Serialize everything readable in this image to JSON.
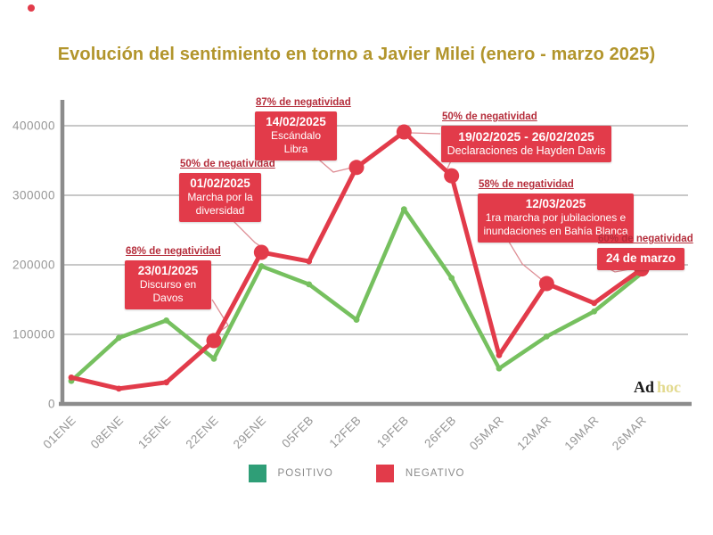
{
  "title": "Evolución del sentimiento en torno a Javier Milei (enero - marzo 2025)",
  "brand": {
    "part1": "Ad",
    "part2": "hoc"
  },
  "legend": [
    {
      "label": "POSITIVO",
      "color": "#2f9e77"
    },
    {
      "label": "NEGATIVO",
      "color": "#e23b4a"
    }
  ],
  "colors": {
    "title": "#b2952c",
    "positive_line": "#76c05f",
    "negative_line": "#e23b4a",
    "annotation_box": "#e23b4a",
    "pct_label": "#b52d3b",
    "connector": "#de8e95",
    "axis": "#8c8c8c",
    "gridline": "#a6a6a6",
    "tick_label": "#979797",
    "brand_hoc": "#e3da8f"
  },
  "chart_data": {
    "type": "line",
    "title": "Evolución del sentimiento en torno a Javier Milei (enero - marzo 2025)",
    "categories": [
      "01ENE",
      "08ENE",
      "15ENE",
      "22ENE",
      "29ENE",
      "05FEB",
      "12FEB",
      "19FEB",
      "26FEB",
      "05MAR",
      "12MAR",
      "19MAR",
      "26MAR"
    ],
    "y_ticks": [
      0,
      100000,
      200000,
      300000,
      400000
    ],
    "ylim": [
      0,
      430000
    ],
    "grid": true,
    "legend_position": "bottom",
    "series": [
      {
        "name": "POSITIVO",
        "color": "#76c05f",
        "values": [
          33000,
          95000,
          120000,
          65000,
          198000,
          172000,
          121000,
          280000,
          181000,
          51000,
          97000,
          133000,
          188000
        ]
      },
      {
        "name": "NEGATIVO",
        "color": "#e23b4a",
        "values": [
          38000,
          22000,
          31000,
          91000,
          218000,
          205000,
          340000,
          391000,
          328000,
          70000,
          173000,
          145000,
          194000
        ],
        "highlight_indices": [
          3,
          4,
          6,
          7,
          8,
          10,
          12
        ]
      }
    ]
  },
  "annotations": [
    {
      "pct": "68% de negatividad",
      "date": "23/01/2025",
      "desc": "Discurso en\nDavos"
    },
    {
      "pct": "50% de negatividad",
      "date": "01/02/2025",
      "desc": "Marcha por la\ndiversidad"
    },
    {
      "pct": "87% de negatividad",
      "date": "14/02/2025",
      "desc": "Escándalo\nLibra"
    },
    {
      "pct": "50% de negatividad",
      "date": "19/02/2025 - 26/02/2025",
      "desc": "Declaraciones de Hayden Davis"
    },
    {
      "pct": "58% de negatividad",
      "date": "12/03/2025",
      "desc": "1ra marcha por jubilaciones e\ninundaciones en Bahía Blanca"
    },
    {
      "pct": "60% de negatividad",
      "date": "24 de marzo",
      "desc": ""
    }
  ]
}
